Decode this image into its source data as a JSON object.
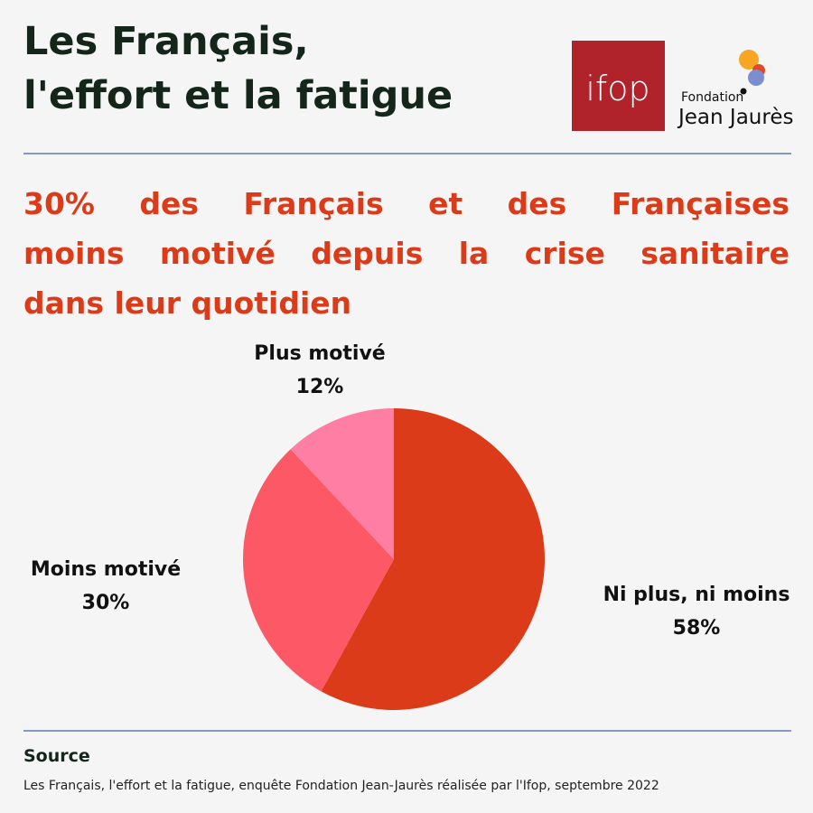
{
  "header": {
    "title_lines": [
      "Les Français,",
      "l'effort et la fatigue"
    ],
    "ifop_logo_text": "ifop",
    "fjj_logo_line1": "Fondation",
    "fjj_logo_line2": "Jean Jaurès"
  },
  "headline_lines": [
    "30% des Français et des Françaises",
    "moins motivé depuis la crise sanitaire",
    "dans leur quotidien"
  ],
  "colors": {
    "title": "#14261a",
    "headline": "#dc3b19",
    "rule": "#8796c9",
    "ifop_red": "#b1232a",
    "fjj_orange": "#f6a623",
    "fjj_blue": "#7b8ed0",
    "fjj_red": "#dc4b2c"
  },
  "chart_data": {
    "type": "pie",
    "slices": [
      {
        "label": "Ni plus, ni moins",
        "value": 58,
        "value_label": "58%",
        "color": "#dc3b19"
      },
      {
        "label": "Moins motivé",
        "value": 30,
        "value_label": "30%",
        "color": "#fc5866"
      },
      {
        "label": "Plus motivé",
        "value": 12,
        "value_label": "12%",
        "color": "#ff7ea3"
      }
    ],
    "start": "top",
    "direction": "clockwise"
  },
  "source": {
    "title": "Source",
    "text": "Les Français, l'effort et la fatigue, enquête Fondation Jean-Jaurès réalisée par l'Ifop, septembre 2022"
  }
}
